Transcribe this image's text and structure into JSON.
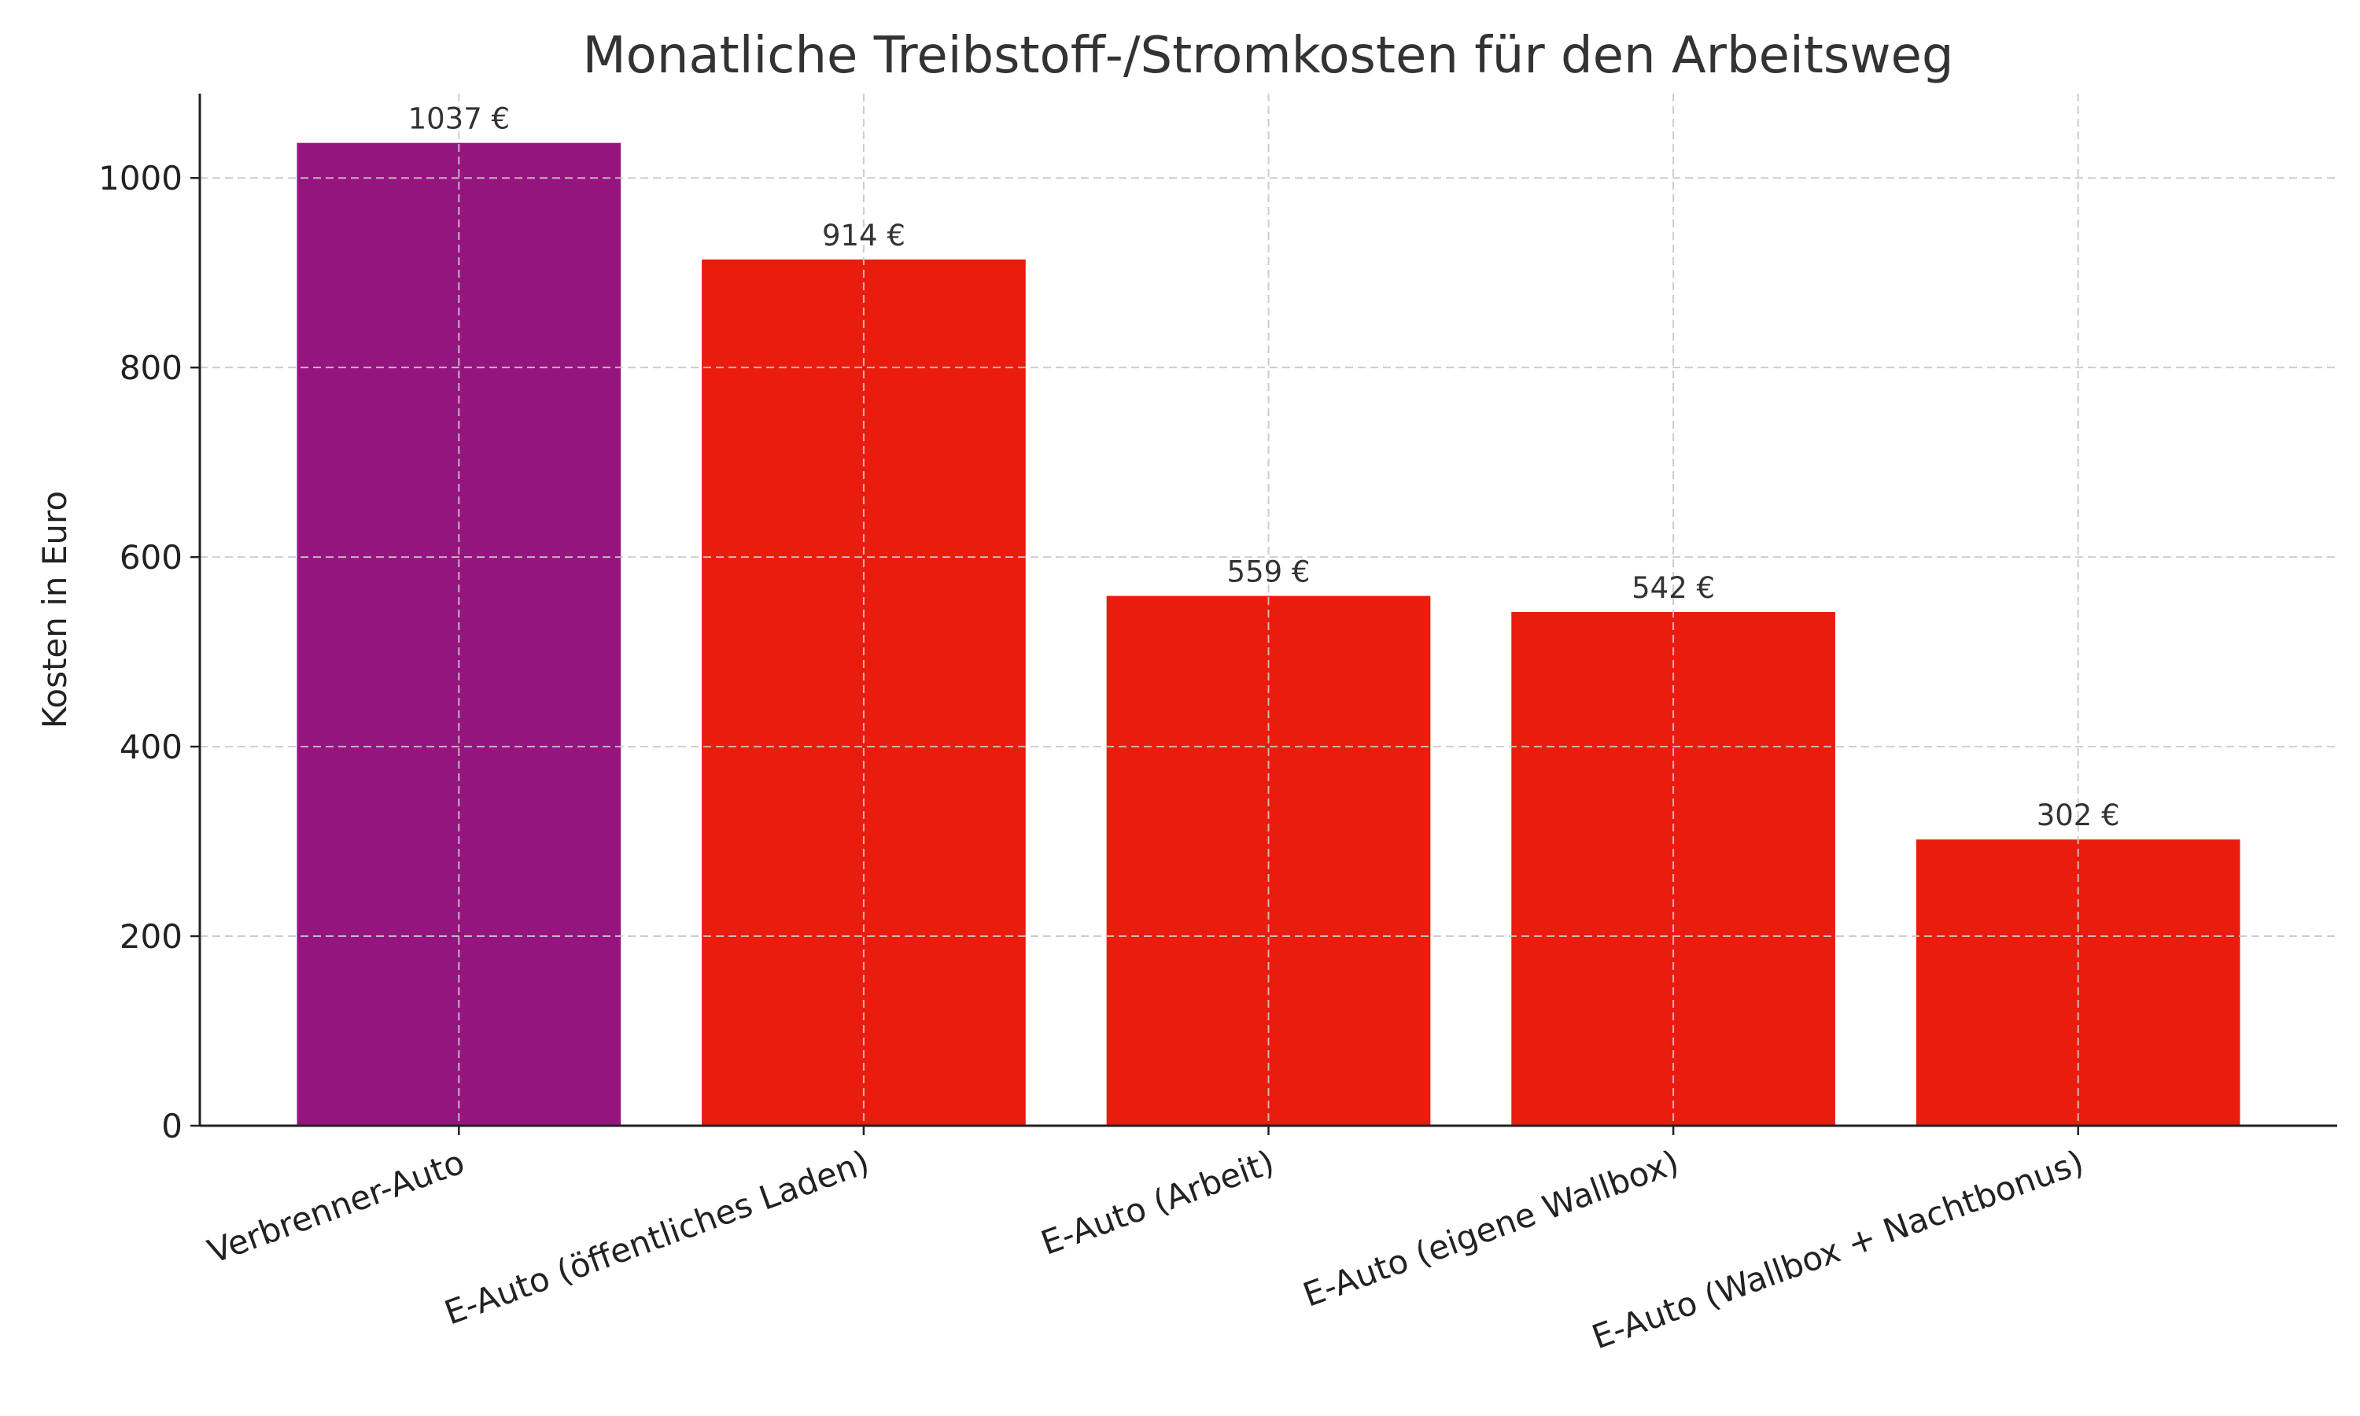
{
  "chart_data": {
    "type": "bar",
    "title": "Monatliche Treibstoff-/Stromkosten für den Arbeitsweg",
    "xlabel": "",
    "ylabel": "Kosten in Euro",
    "categories": [
      "Verbrenner-Auto",
      "E-Auto (öffentliches Laden)",
      "E-Auto (Arbeit)",
      "E-Auto (eigene Wallbox)",
      "E-Auto (Wallbox + Nachtbonus)"
    ],
    "values": [
      1037,
      914,
      559,
      542,
      302
    ],
    "data_labels": [
      "1037 €",
      "914 €",
      "559 €",
      "542 €",
      "302 €"
    ],
    "colors": [
      "#95157f",
      "#e91c0d",
      "#e91c0d",
      "#e91c0d",
      "#e91c0d"
    ],
    "ylim": [
      0,
      1089
    ],
    "yticks": [
      0,
      200,
      400,
      600,
      800,
      1000
    ],
    "grid": true,
    "xtick_rotation": 20
  }
}
